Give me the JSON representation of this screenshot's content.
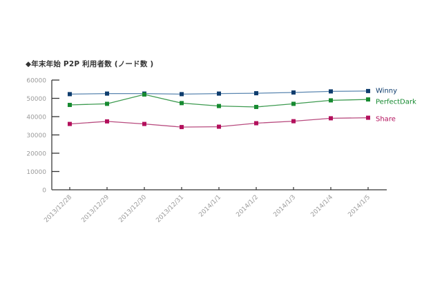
{
  "chart_data": {
    "type": "line",
    "title": "◆年末年始 P2P 利用者数 (ノード数 )",
    "xlabel": "",
    "ylabel": "",
    "ylim": [
      0,
      60000
    ],
    "yticks": [
      0,
      10000,
      20000,
      30000,
      40000,
      50000,
      60000
    ],
    "ytick_labels": [
      "0",
      "10000",
      "20000",
      "30000",
      "40000",
      "50000",
      "60000"
    ],
    "grid": false,
    "legend_position": "right (inline at line ends)",
    "categories": [
      "2013/12/28",
      "2013/12/29",
      "2013/12/30",
      "2013/12/31",
      "2014/1/1",
      "2014/1/2",
      "2014/1/3",
      "2014/1/4",
      "2014/1/5"
    ],
    "series": [
      {
        "name": "Winny",
        "color": "#0f3d6e",
        "line_color": "#5a86b0",
        "values": [
          52300,
          52600,
          52600,
          52300,
          52600,
          52800,
          53200,
          53800,
          54000
        ]
      },
      {
        "name": "PerfectDark",
        "color": "#168a30",
        "line_color": "#3c9a4f",
        "values": [
          46400,
          47000,
          52100,
          47400,
          45800,
          45300,
          47000,
          48900,
          49400
        ]
      },
      {
        "name": "Share",
        "color": "#b3105c",
        "line_color": "#b84a7e",
        "values": [
          36000,
          37400,
          36000,
          34300,
          34500,
          36400,
          37500,
          39100,
          39400
        ]
      }
    ]
  }
}
